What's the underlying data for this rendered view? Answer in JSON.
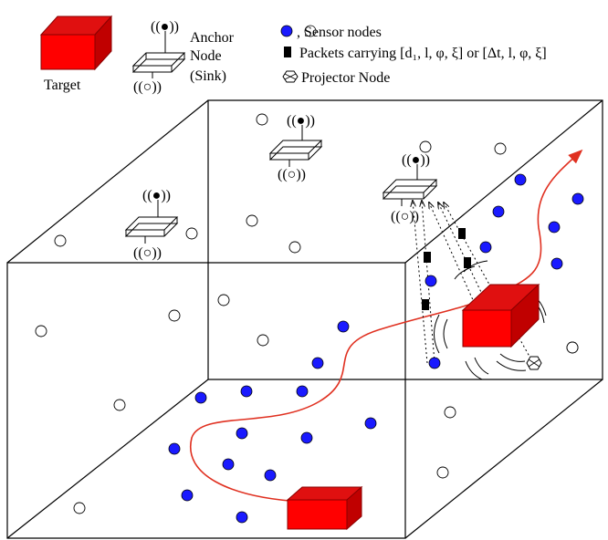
{
  "legend": {
    "target_label": "Target",
    "anchor_label_line1": "Anchor",
    "anchor_label_line2": "Node",
    "anchor_label_line3": "(Sink)",
    "sensor_label": ", Sensor nodes",
    "packets_label": "Packets carrying [d₁, l, φ, ξ] or [Δt, l, φ, ξ]",
    "projector_label": "Projector Node",
    "signal_top": "((●))",
    "signal_bottom": "((○))"
  },
  "colors": {
    "target_front": "#ff0000",
    "target_top": "#e01010",
    "target_side": "#c00000",
    "sensor_active": "#1a1aff",
    "sensor_inactive": "#ffffff",
    "trajectory": "#e03020",
    "line": "#000000"
  },
  "icons": [
    "target-block",
    "anchor-node",
    "sensor-node",
    "packet",
    "projector-node",
    "trajectory-arrow"
  ]
}
